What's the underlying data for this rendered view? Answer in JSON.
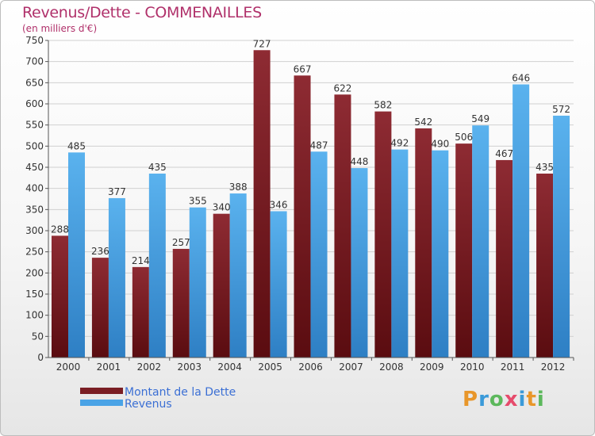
{
  "header": {
    "title": "Revenus/Dette - COMMENAILLES",
    "subtitle": "(en milliers d'€)"
  },
  "brand": {
    "text": "Proxiti",
    "letters": [
      "P",
      "r",
      "o",
      "x",
      "i",
      "t",
      "i"
    ],
    "colors": [
      "#e8962a",
      "#3a9ad9",
      "#5cb85c",
      "#e64b6c",
      "#3a9ad9",
      "#e8962a",
      "#5cb85c"
    ]
  },
  "chart_data": {
    "type": "bar",
    "title": "Revenus/Dette - COMMENAILLES",
    "subtitle": "(en milliers d'€)",
    "categories": [
      "2000",
      "2001",
      "2002",
      "2003",
      "2004",
      "2005",
      "2006",
      "2007",
      "2008",
      "2009",
      "2010",
      "2011",
      "2012"
    ],
    "series": [
      {
        "name": "Montant de la Dette",
        "color": "#7a1e24",
        "values": [
          288,
          236,
          214,
          257,
          340,
          727,
          667,
          622,
          582,
          542,
          506,
          467,
          435
        ]
      },
      {
        "name": "Revenus",
        "color": "#4aa3e6",
        "values": [
          485,
          377,
          435,
          355,
          388,
          346,
          487,
          448,
          492,
          490,
          549,
          646,
          572
        ]
      }
    ],
    "ylim": [
      0,
      750
    ],
    "yticks": [
      0,
      50,
      100,
      150,
      200,
      250,
      300,
      350,
      400,
      450,
      500,
      550,
      600,
      650,
      700,
      750
    ],
    "grid": true,
    "legend_position": "bottom-left",
    "xlabel": "",
    "ylabel": ""
  }
}
